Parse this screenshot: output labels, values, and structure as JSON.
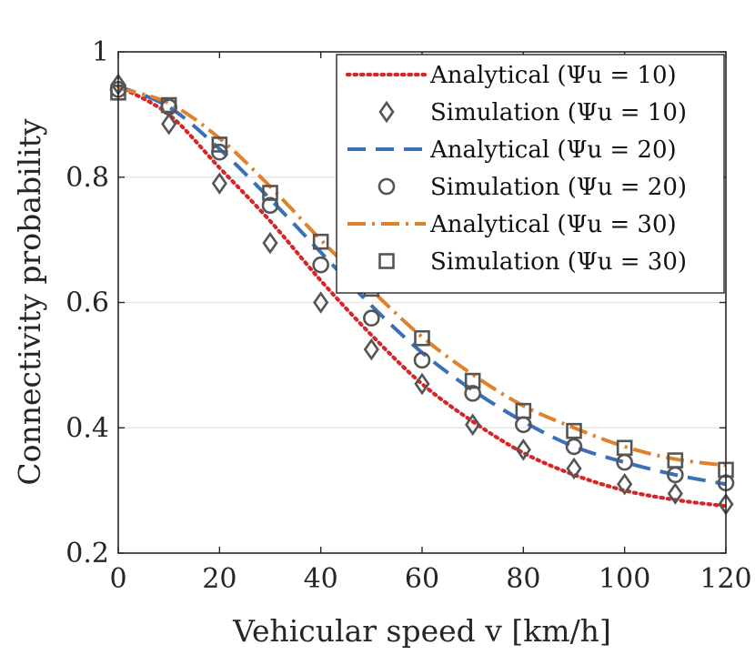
{
  "chart_data": {
    "type": "line",
    "title": "",
    "xlabel": "Vehicular speed v [km/h]",
    "ylabel": "Connectivity probability",
    "xlim": [
      0,
      120
    ],
    "ylim": [
      0.2,
      1.0
    ],
    "xticks": [
      0,
      20,
      40,
      60,
      80,
      100,
      120
    ],
    "yticks": [
      0.2,
      0.4,
      0.6,
      0.8,
      1.0
    ],
    "xtick_labels": [
      "0",
      "20",
      "40",
      "60",
      "80",
      "100",
      "120"
    ],
    "ytick_labels": [
      "0.2",
      "0.4",
      "0.6",
      "0.8",
      "1"
    ],
    "grid": "horizontal",
    "legend_position": "top-right",
    "series": [
      {
        "name": "Analytical (Ψu = 10)",
        "kind": "line",
        "style": "dotted",
        "color": "#d62728",
        "x": [
          0,
          10,
          20,
          30,
          40,
          50,
          60,
          70,
          80,
          90,
          100,
          110,
          120
        ],
        "values": [
          0.945,
          0.9,
          0.815,
          0.73,
          0.635,
          0.548,
          0.47,
          0.41,
          0.36,
          0.325,
          0.3,
          0.285,
          0.275
        ]
      },
      {
        "name": "Simulation (Ψu = 10)",
        "kind": "marker",
        "marker": "diamond",
        "color": "#555555",
        "x": [
          0,
          10,
          20,
          30,
          40,
          50,
          60,
          70,
          80,
          90,
          100,
          110,
          120
        ],
        "values": [
          0.948,
          0.885,
          0.79,
          0.695,
          0.6,
          0.525,
          0.47,
          0.405,
          0.365,
          0.335,
          0.31,
          0.295,
          0.278
        ]
      },
      {
        "name": "Analytical (Ψu = 20)",
        "kind": "line",
        "style": "dashed",
        "color": "#3a6fba",
        "x": [
          0,
          10,
          20,
          30,
          40,
          50,
          60,
          70,
          80,
          90,
          100,
          110,
          120
        ],
        "values": [
          0.945,
          0.912,
          0.845,
          0.765,
          0.68,
          0.595,
          0.52,
          0.46,
          0.41,
          0.37,
          0.345,
          0.325,
          0.31
        ]
      },
      {
        "name": "Simulation (Ψu = 20)",
        "kind": "marker",
        "marker": "circle",
        "color": "#555555",
        "x": [
          0,
          10,
          20,
          30,
          40,
          50,
          60,
          70,
          80,
          90,
          100,
          110,
          120
        ],
        "values": [
          0.94,
          0.912,
          0.84,
          0.755,
          0.66,
          0.575,
          0.508,
          0.455,
          0.405,
          0.37,
          0.345,
          0.325,
          0.312
        ]
      },
      {
        "name": "Analytical (Ψu = 30)",
        "kind": "line",
        "style": "dashdot",
        "color": "#e0812b",
        "x": [
          0,
          10,
          20,
          30,
          40,
          50,
          60,
          70,
          80,
          90,
          100,
          110,
          120
        ],
        "values": [
          0.942,
          0.918,
          0.862,
          0.785,
          0.7,
          0.62,
          0.545,
          0.485,
          0.435,
          0.4,
          0.37,
          0.35,
          0.34
        ]
      },
      {
        "name": "Simulation (Ψu = 30)",
        "kind": "marker",
        "marker": "square",
        "color": "#555555",
        "x": [
          0,
          10,
          20,
          30,
          40,
          50,
          60,
          70,
          80,
          90,
          100,
          110,
          120
        ],
        "values": [
          0.935,
          0.915,
          0.852,
          0.775,
          0.697,
          0.622,
          0.543,
          0.475,
          0.427,
          0.395,
          0.368,
          0.348,
          0.333
        ]
      }
    ]
  }
}
